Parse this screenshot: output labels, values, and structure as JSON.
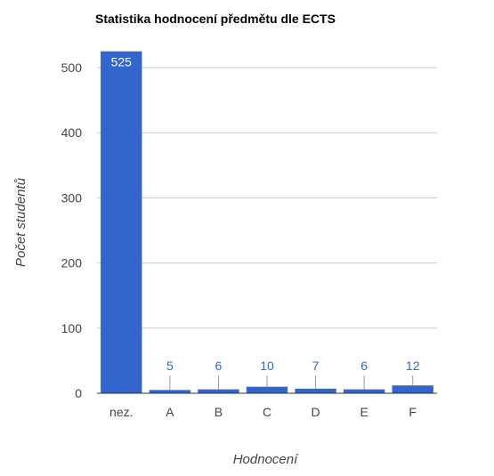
{
  "chart_data": {
    "type": "bar",
    "title": "Statistika hodnocení předmětu dle ECTS",
    "xlabel": "Hodnocení",
    "ylabel": "Počet studentů",
    "categories": [
      "nez.",
      "A",
      "B",
      "C",
      "D",
      "E",
      "F"
    ],
    "values": [
      525,
      5,
      6,
      10,
      7,
      6,
      12
    ],
    "data_labels": [
      "525",
      "5",
      "6",
      "10",
      "7",
      "6",
      "12"
    ],
    "y_ticks": [
      0,
      100,
      200,
      300,
      400,
      500
    ],
    "ylim": [
      0,
      500
    ],
    "grid": true,
    "legend": "none",
    "bar_color": "#3366cc",
    "label_color_inside": "#ffffff",
    "label_color_outside": "#3366cc"
  }
}
